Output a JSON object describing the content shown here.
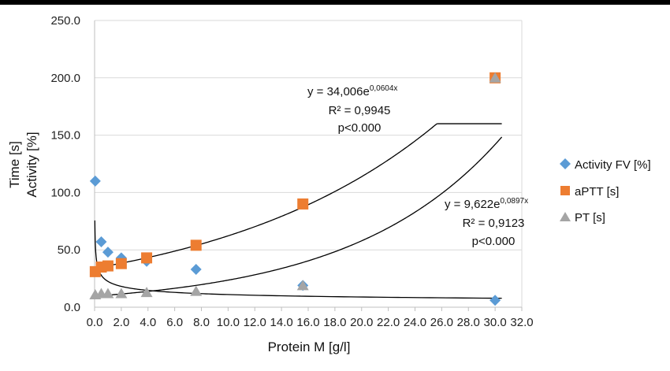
{
  "chart_data": {
    "type": "scatter",
    "xlabel": "Protein M [g/l]",
    "ylabel_lines": [
      "Time [s]",
      "Activity [%]"
    ],
    "xlim": [
      0,
      32
    ],
    "ylim": [
      0,
      250
    ],
    "x_ticks": [
      "0.0",
      "2.0",
      "4.0",
      "6.0",
      "8.0",
      "10.0",
      "12.0",
      "14.0",
      "16.0",
      "18.0",
      "20.0",
      "22.0",
      "24.0",
      "26.0",
      "28.0",
      "30.0",
      "32.0"
    ],
    "y_ticks": [
      "0.0",
      "50.0",
      "100.0",
      "150.0",
      "200.0",
      "250.0"
    ],
    "grid": "horizontal",
    "legend_position": "right",
    "series": [
      {
        "name": "Activity FV [%]",
        "marker": "diamond",
        "color": "#5B9BD5",
        "points": [
          [
            0.05,
            110
          ],
          [
            0.5,
            57
          ],
          [
            1.0,
            48
          ],
          [
            2.0,
            43
          ],
          [
            3.9,
            40
          ],
          [
            7.6,
            33
          ],
          [
            15.6,
            19
          ],
          [
            30.0,
            6
          ]
        ]
      },
      {
        "name": "aPTT [s]",
        "marker": "square",
        "color": "#ED7D31",
        "points": [
          [
            0.05,
            31
          ],
          [
            0.5,
            35
          ],
          [
            1.0,
            36
          ],
          [
            2.0,
            38
          ],
          [
            3.9,
            43
          ],
          [
            7.6,
            54
          ],
          [
            15.6,
            90
          ],
          [
            30.0,
            200
          ]
        ]
      },
      {
        "name": "PT [s]",
        "marker": "triangle",
        "color": "#A5A5A5",
        "points": [
          [
            0.05,
            11
          ],
          [
            0.5,
            12
          ],
          [
            1.0,
            12
          ],
          [
            2.0,
            12
          ],
          [
            3.9,
            13
          ],
          [
            7.6,
            14
          ],
          [
            15.6,
            19
          ],
          [
            30.0,
            200
          ]
        ]
      }
    ],
    "trendlines": [
      {
        "type": "exponential",
        "a": 34.006,
        "b": 0.0604,
        "x_range": [
          0,
          30.5
        ]
      },
      {
        "type": "exponential",
        "a": 9.622,
        "b": 0.0897,
        "x_range": [
          0,
          30.5
        ]
      },
      {
        "type": "power",
        "a": 22.5,
        "b": -0.31,
        "x_range": [
          0.02,
          30.5
        ]
      }
    ],
    "annotations": [
      {
        "lines": [
          "y = 34,006e",
          "0,0604x",
          "R² = 0,9945",
          "p<0.000"
        ]
      },
      {
        "lines": [
          "y = 9,622e",
          "0,0897x",
          "R² = 0,9123",
          "p<0.000"
        ]
      }
    ]
  }
}
